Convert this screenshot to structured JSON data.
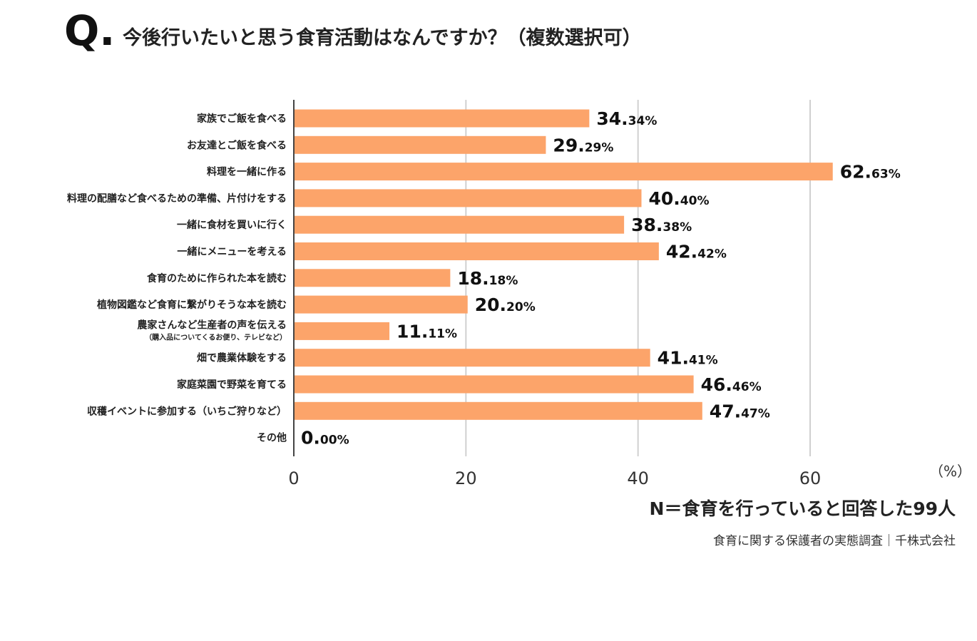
{
  "header": {
    "q_mark": "Q.",
    "question": "今後行いたいと思う食育活動はなんですか？（複数選択可）"
  },
  "footer": {
    "sample": "N＝食育を行っていると回答した99人",
    "source": "食育に関する保護者の実態調査｜千株式会社"
  },
  "chart_data": {
    "type": "bar",
    "orientation": "horizontal",
    "title": "今後行いたいと思う食育活動はなんですか？（複数選択可）",
    "unit_label": "（%）",
    "categories": [
      {
        "label": "家族でご飯を食べる",
        "sublabel": ""
      },
      {
        "label": "お友達とご飯を食べる",
        "sublabel": ""
      },
      {
        "label": "料理を一緒に作る",
        "sublabel": ""
      },
      {
        "label": "料理の配膳など食べるための準備、片付けをする",
        "sublabel": ""
      },
      {
        "label": "一緒に食材を買いに行く",
        "sublabel": ""
      },
      {
        "label": "一緒にメニューを考える",
        "sublabel": ""
      },
      {
        "label": "食育のために作られた本を読む",
        "sublabel": ""
      },
      {
        "label": "植物図鑑など食育に繋がりそうな本を読む",
        "sublabel": ""
      },
      {
        "label": "農家さんなど生産者の声を伝える",
        "sublabel": "（購入品についてくるお便り、テレビなど）"
      },
      {
        "label": "畑で農業体験をする",
        "sublabel": ""
      },
      {
        "label": "家庭菜園で野菜を育てる",
        "sublabel": ""
      },
      {
        "label": "収穫イベントに参加する（いちご狩りなど）",
        "sublabel": ""
      },
      {
        "label": "その他",
        "sublabel": ""
      }
    ],
    "values": [
      34.34,
      29.29,
      62.63,
      40.4,
      38.38,
      42.42,
      18.18,
      20.2,
      11.11,
      41.41,
      46.46,
      47.47,
      0.0
    ],
    "value_labels": [
      {
        "int": "34.",
        "dec": "34%"
      },
      {
        "int": "29.",
        "dec": "29%"
      },
      {
        "int": "62.",
        "dec": "63%"
      },
      {
        "int": "40.",
        "dec": "40%"
      },
      {
        "int": "38.",
        "dec": "38%"
      },
      {
        "int": "42.",
        "dec": "42%"
      },
      {
        "int": "18.",
        "dec": "18%"
      },
      {
        "int": "20.",
        "dec": "20%"
      },
      {
        "int": "11.",
        "dec": "11%"
      },
      {
        "int": "41.",
        "dec": "41%"
      },
      {
        "int": "46.",
        "dec": "46%"
      },
      {
        "int": "47.",
        "dec": "47%"
      },
      {
        "int": "0.",
        "dec": "00%"
      }
    ],
    "xlim": [
      0,
      75
    ],
    "xticks": [
      0,
      20,
      40,
      60
    ],
    "xtick_labels": [
      "0",
      "20",
      "40",
      "60"
    ],
    "grid": true,
    "bar_color": "#FCA46A",
    "grid_color": "#d0d0d0"
  }
}
